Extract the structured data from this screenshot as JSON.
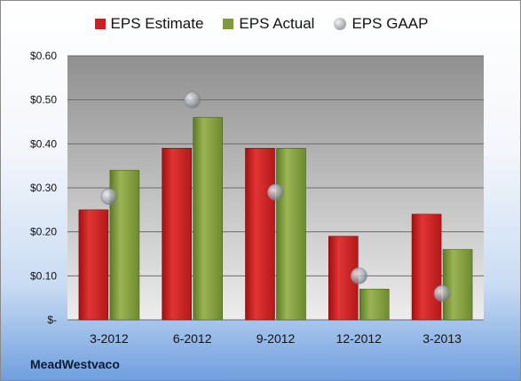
{
  "chart_data": {
    "type": "bar",
    "categories": [
      "3-2012",
      "6-2012",
      "9-2012",
      "12-2012",
      "3-2013"
    ],
    "series": [
      {
        "name": "EPS Estimate",
        "kind": "bar",
        "color": "#cc1f1f",
        "values": [
          0.25,
          0.39,
          0.39,
          0.19,
          0.24
        ]
      },
      {
        "name": "EPS Actual",
        "kind": "bar",
        "color": "#7f9a3b",
        "values": [
          0.34,
          0.46,
          0.39,
          0.07,
          0.16
        ]
      },
      {
        "name": "EPS GAAP",
        "kind": "marker",
        "color": "#a8aeb8",
        "values": [
          0.28,
          0.5,
          0.29,
          0.1,
          0.06
        ]
      }
    ],
    "yticks": [
      "$-",
      "$0.10",
      "$0.20",
      "$0.30",
      "$0.40",
      "$0.50",
      "$0.60"
    ],
    "ylim": [
      0,
      0.6
    ],
    "grid": true,
    "legend_position": "top"
  },
  "company": "MeadWestvaco"
}
